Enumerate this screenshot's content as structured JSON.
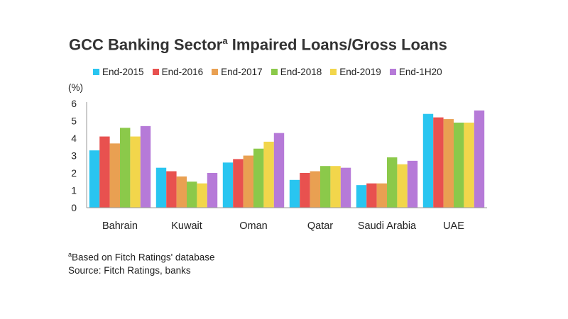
{
  "chart_data": {
    "type": "bar",
    "title": "GCC Banking Sector",
    "title_superscript": "a",
    "title_rest": " Impaired Loans/Gross Loans",
    "ylabel": "(%)",
    "ylim": [
      0,
      6
    ],
    "yticks": [
      "0",
      "1",
      "2",
      "3",
      "4",
      "5",
      "6"
    ],
    "grid": false,
    "legend_position": "top",
    "categories": [
      "Bahrain",
      "Kuwait",
      "Oman",
      "Qatar",
      "Saudi Arabia",
      "UAE"
    ],
    "series": [
      {
        "name": "End-2015",
        "color": "#29c5f0",
        "values": [
          3.3,
          2.3,
          2.6,
          1.6,
          1.3,
          5.4
        ]
      },
      {
        "name": "End-2016",
        "color": "#e8514f",
        "values": [
          4.1,
          2.1,
          2.8,
          2.0,
          1.4,
          5.2
        ]
      },
      {
        "name": "End-2017",
        "color": "#e9a052",
        "values": [
          3.7,
          1.8,
          3.0,
          2.1,
          1.4,
          5.1
        ]
      },
      {
        "name": "End-2018",
        "color": "#8bc94a",
        "values": [
          4.6,
          1.5,
          3.4,
          2.4,
          2.9,
          4.9
        ]
      },
      {
        "name": "End-2019",
        "color": "#f2d64b",
        "values": [
          4.1,
          1.4,
          3.8,
          2.4,
          2.5,
          4.9
        ]
      },
      {
        "name": "End-1H20",
        "color": "#b67ad8",
        "values": [
          4.7,
          2.0,
          4.3,
          2.3,
          2.7,
          5.6
        ]
      }
    ]
  },
  "footnote": {
    "marker": "a",
    "text": "Based on Fitch Ratings' database",
    "source": "Source: Fitch Ratings, banks"
  }
}
